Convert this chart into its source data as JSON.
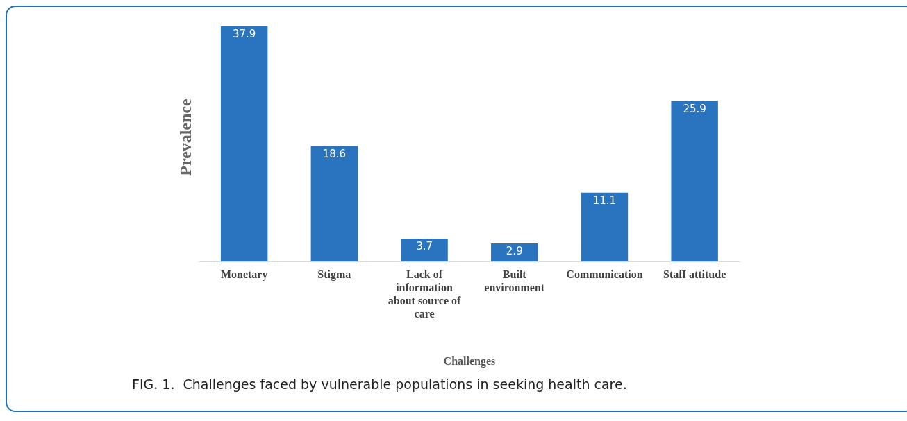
{
  "chart_data": {
    "type": "bar",
    "xlabel": "Challenges",
    "ylabel": "Prevalence",
    "categories": [
      "Monetary",
      "Stigma",
      "Lack of information about source of care",
      "Built environment",
      "Communication",
      "Staff attitude"
    ],
    "values": [
      37.9,
      18.6,
      3.7,
      2.9,
      11.1,
      25.9
    ],
    "color": "#2a73be",
    "data_labels": true,
    "annotations": [
      "FIG. 1.  Challenges faced by vulnerable populations in seeking health care."
    ]
  }
}
